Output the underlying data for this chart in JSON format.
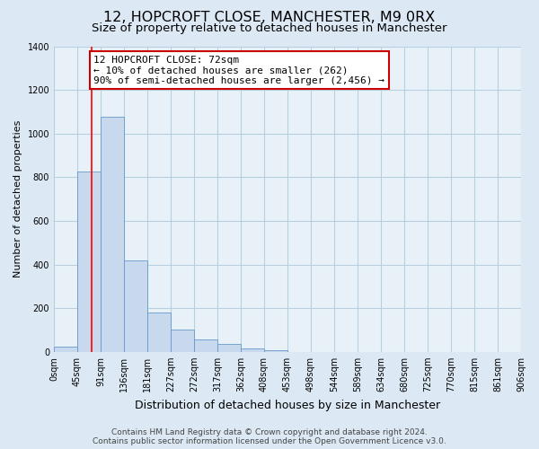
{
  "title": "12, HOPCROFT CLOSE, MANCHESTER, M9 0RX",
  "subtitle": "Size of property relative to detached houses in Manchester",
  "xlabel": "Distribution of detached houses by size in Manchester",
  "ylabel": "Number of detached properties",
  "bar_values": [
    25,
    825,
    1075,
    420,
    180,
    100,
    57,
    35,
    17,
    8,
    0,
    0,
    0,
    0,
    0,
    0,
    0,
    0,
    0,
    0
  ],
  "bar_labels": [
    "0sqm",
    "45sqm",
    "91sqm",
    "136sqm",
    "181sqm",
    "227sqm",
    "272sqm",
    "317sqm",
    "362sqm",
    "408sqm",
    "453sqm",
    "498sqm",
    "544sqm",
    "589sqm",
    "634sqm",
    "680sqm",
    "725sqm",
    "770sqm",
    "815sqm",
    "861sqm",
    "906sqm"
  ],
  "bar_color": "#c9d9ed",
  "bar_edge_color": "#6699cc",
  "grid_color": "#b8cfe0",
  "background_color": "#dce9f5",
  "plot_bg_color": "#e8f1f8",
  "red_line_x": 1.62,
  "annotation_text": "12 HOPCROFT CLOSE: 72sqm\n← 10% of detached houses are smaller (262)\n90% of semi-detached houses are larger (2,456) →",
  "annotation_box_color": "#ffffff",
  "annotation_box_edge_color": "#cc0000",
  "ylim": [
    0,
    1400
  ],
  "yticks": [
    0,
    200,
    400,
    600,
    800,
    1000,
    1200,
    1400
  ],
  "footer_line1": "Contains HM Land Registry data © Crown copyright and database right 2024.",
  "footer_line2": "Contains public sector information licensed under the Open Government Licence v3.0.",
  "title_fontsize": 11.5,
  "subtitle_fontsize": 9.5,
  "xlabel_fontsize": 9,
  "ylabel_fontsize": 8,
  "tick_fontsize": 7,
  "annotation_fontsize": 8,
  "footer_fontsize": 6.5
}
